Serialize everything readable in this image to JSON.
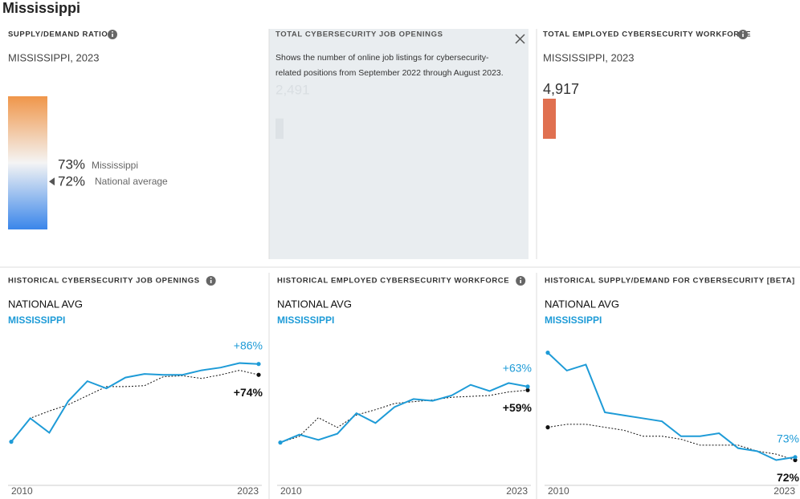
{
  "header": {
    "title": "Mississippi"
  },
  "supply_demand": {
    "title": "SUPPLY/DEMAND RATIO",
    "subtitle": "MISSISSIPPI, 2023",
    "state": {
      "value": 73,
      "value_label": "73%",
      "name": "Mississippi"
    },
    "national": {
      "value": 72,
      "value_label": "72%",
      "name": "National average"
    }
  },
  "job_openings": {
    "title": "TOTAL CYBERSECURITY JOB OPENINGS",
    "tooltip": "Shows the number of online job listings for cybersecurity-related positions from September 2022 through August 2023.",
    "value": 2491,
    "value_label": "2,491"
  },
  "workforce": {
    "title": "TOTAL EMPLOYED CYBERSECURITY WORKFORCE",
    "subtitle": "MISSISSIPPI, 2023",
    "value": 4917,
    "value_label": "4,917",
    "color": "#e07050"
  },
  "chart_data": [
    {
      "type": "line",
      "title": "HISTORICAL CYBERSECURITY JOB OPENINGS",
      "x": [
        2010,
        2011,
        2012,
        2013,
        2014,
        2015,
        2016,
        2017,
        2018,
        2019,
        2020,
        2021,
        2022,
        2023
      ],
      "xlim": [
        2010,
        2023
      ],
      "xticks": [
        2010,
        2023
      ],
      "ylim": [
        50,
        215
      ],
      "series": [
        {
          "name": "NATIONAL AVG",
          "color": "#111111",
          "values": [
            100,
            126,
            134,
            141,
            151,
            161,
            161,
            162,
            172,
            173,
            170,
            174,
            179,
            174
          ],
          "annotation": "+74%"
        },
        {
          "name": "MISSISSIPPI",
          "color": "#1e9bd7",
          "values": [
            100,
            126,
            110,
            145,
            167,
            159,
            171,
            175,
            174,
            174,
            179,
            182,
            187,
            186
          ],
          "annotation": "+86%"
        }
      ]
    },
    {
      "type": "line",
      "title": "HISTORICAL EMPLOYED CYBERSECURITY WORKFORCE",
      "x": [
        2010,
        2011,
        2012,
        2013,
        2014,
        2015,
        2016,
        2017,
        2018,
        2019,
        2020,
        2021,
        2022,
        2023
      ],
      "xlim": [
        2010,
        2023
      ],
      "xticks": [
        2010,
        2023
      ],
      "ylim": [
        50,
        218
      ],
      "series": [
        {
          "name": "NATIONAL AVG",
          "color": "#111111",
          "values": [
            100,
            107,
            128,
            117,
            131,
            137,
            144,
            146,
            148,
            151,
            152,
            153,
            157,
            159
          ],
          "annotation": "+59%"
        },
        {
          "name": "MISSISSIPPI",
          "color": "#1e9bd7",
          "values": [
            100,
            109,
            103,
            110,
            133,
            122,
            140,
            149,
            147,
            153,
            165,
            158,
            167,
            163
          ],
          "annotation": "+63%"
        }
      ]
    },
    {
      "type": "line",
      "title": "HISTORICAL SUPPLY/DEMAND FOR CYBERSECURITY [BETA]",
      "x": [
        2010,
        2011,
        2012,
        2013,
        2014,
        2015,
        2016,
        2017,
        2018,
        2019,
        2020,
        2021,
        2022,
        2023
      ],
      "xlim": [
        2010,
        2023
      ],
      "xticks": [
        2010,
        2023
      ],
      "ylim": [
        63,
        113
      ],
      "series": [
        {
          "name": "NATIONAL AVG",
          "color": "#111111",
          "values": [
            83,
            84,
            84,
            83,
            82,
            80,
            80,
            79,
            77,
            77,
            77,
            75,
            74,
            72
          ],
          "annotation": "72%"
        },
        {
          "name": "MISSISSIPPI",
          "color": "#1e9bd7",
          "values": [
            108,
            102,
            104,
            88,
            87,
            86,
            85,
            80,
            80,
            81,
            76,
            75,
            72,
            73
          ],
          "annotation": "73%"
        }
      ]
    }
  ]
}
